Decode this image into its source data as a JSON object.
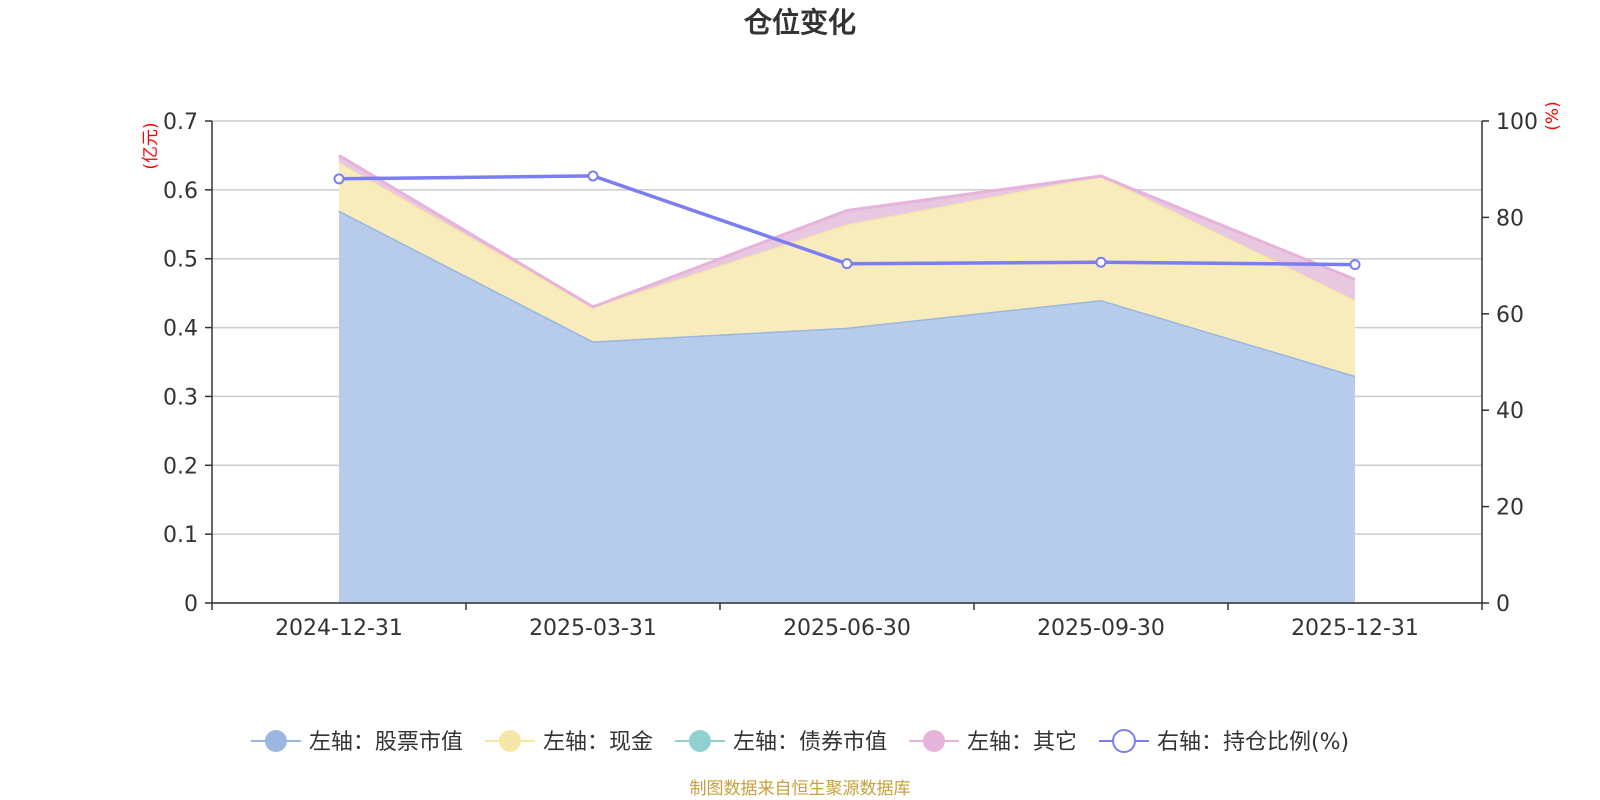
{
  "chart_data": {
    "type": "area",
    "title": "仓位变化",
    "categories": [
      "2024-12-31",
      "2025-03-31",
      "2025-06-30",
      "2025-09-30",
      "2025-12-31"
    ],
    "left_axis": {
      "unit": "(亿元)",
      "ylim": [
        0,
        0.7
      ],
      "ticks": [
        "0",
        "0.1",
        "0.2",
        "0.3",
        "0.4",
        "0.5",
        "0.6",
        "0.7"
      ]
    },
    "right_axis": {
      "unit": "(%)",
      "ylim": [
        0,
        100
      ],
      "ticks": [
        "0",
        "20",
        "40",
        "60",
        "80",
        "100"
      ]
    },
    "grid": true,
    "stacked": true,
    "series": [
      {
        "name": "左轴：股票市值",
        "axis": "left",
        "type": "area",
        "color": "#9bb7e0",
        "fill": "#b7cbea",
        "values": [
          0.57,
          0.38,
          0.4,
          0.44,
          0.33
        ]
      },
      {
        "name": "左轴：现金",
        "axis": "left",
        "type": "area",
        "color": "#f7e7a6",
        "fill": "#f8ecbd",
        "values": [
          0.07,
          0.05,
          0.15,
          0.18,
          0.11
        ]
      },
      {
        "name": "左轴：债券市值",
        "axis": "left",
        "type": "area",
        "color": "#8fd1d0",
        "fill": "#bfe4e3",
        "values": [
          0,
          0,
          0,
          0,
          0
        ]
      },
      {
        "name": "左轴：其它",
        "axis": "left",
        "type": "area",
        "color": "#e6b4da",
        "fill": "#e8c7e0",
        "values": [
          0.01,
          0.0,
          0.02,
          0.0,
          0.03
        ]
      },
      {
        "name": "右轴：持仓比例(%)",
        "axis": "right",
        "type": "line",
        "color": "#7b7ef0",
        "values": [
          88.0,
          88.6,
          70.4,
          70.7,
          70.2
        ]
      }
    ],
    "legend_position": "bottom-center",
    "source_note": "制图数据来自恒生聚源数据库"
  }
}
